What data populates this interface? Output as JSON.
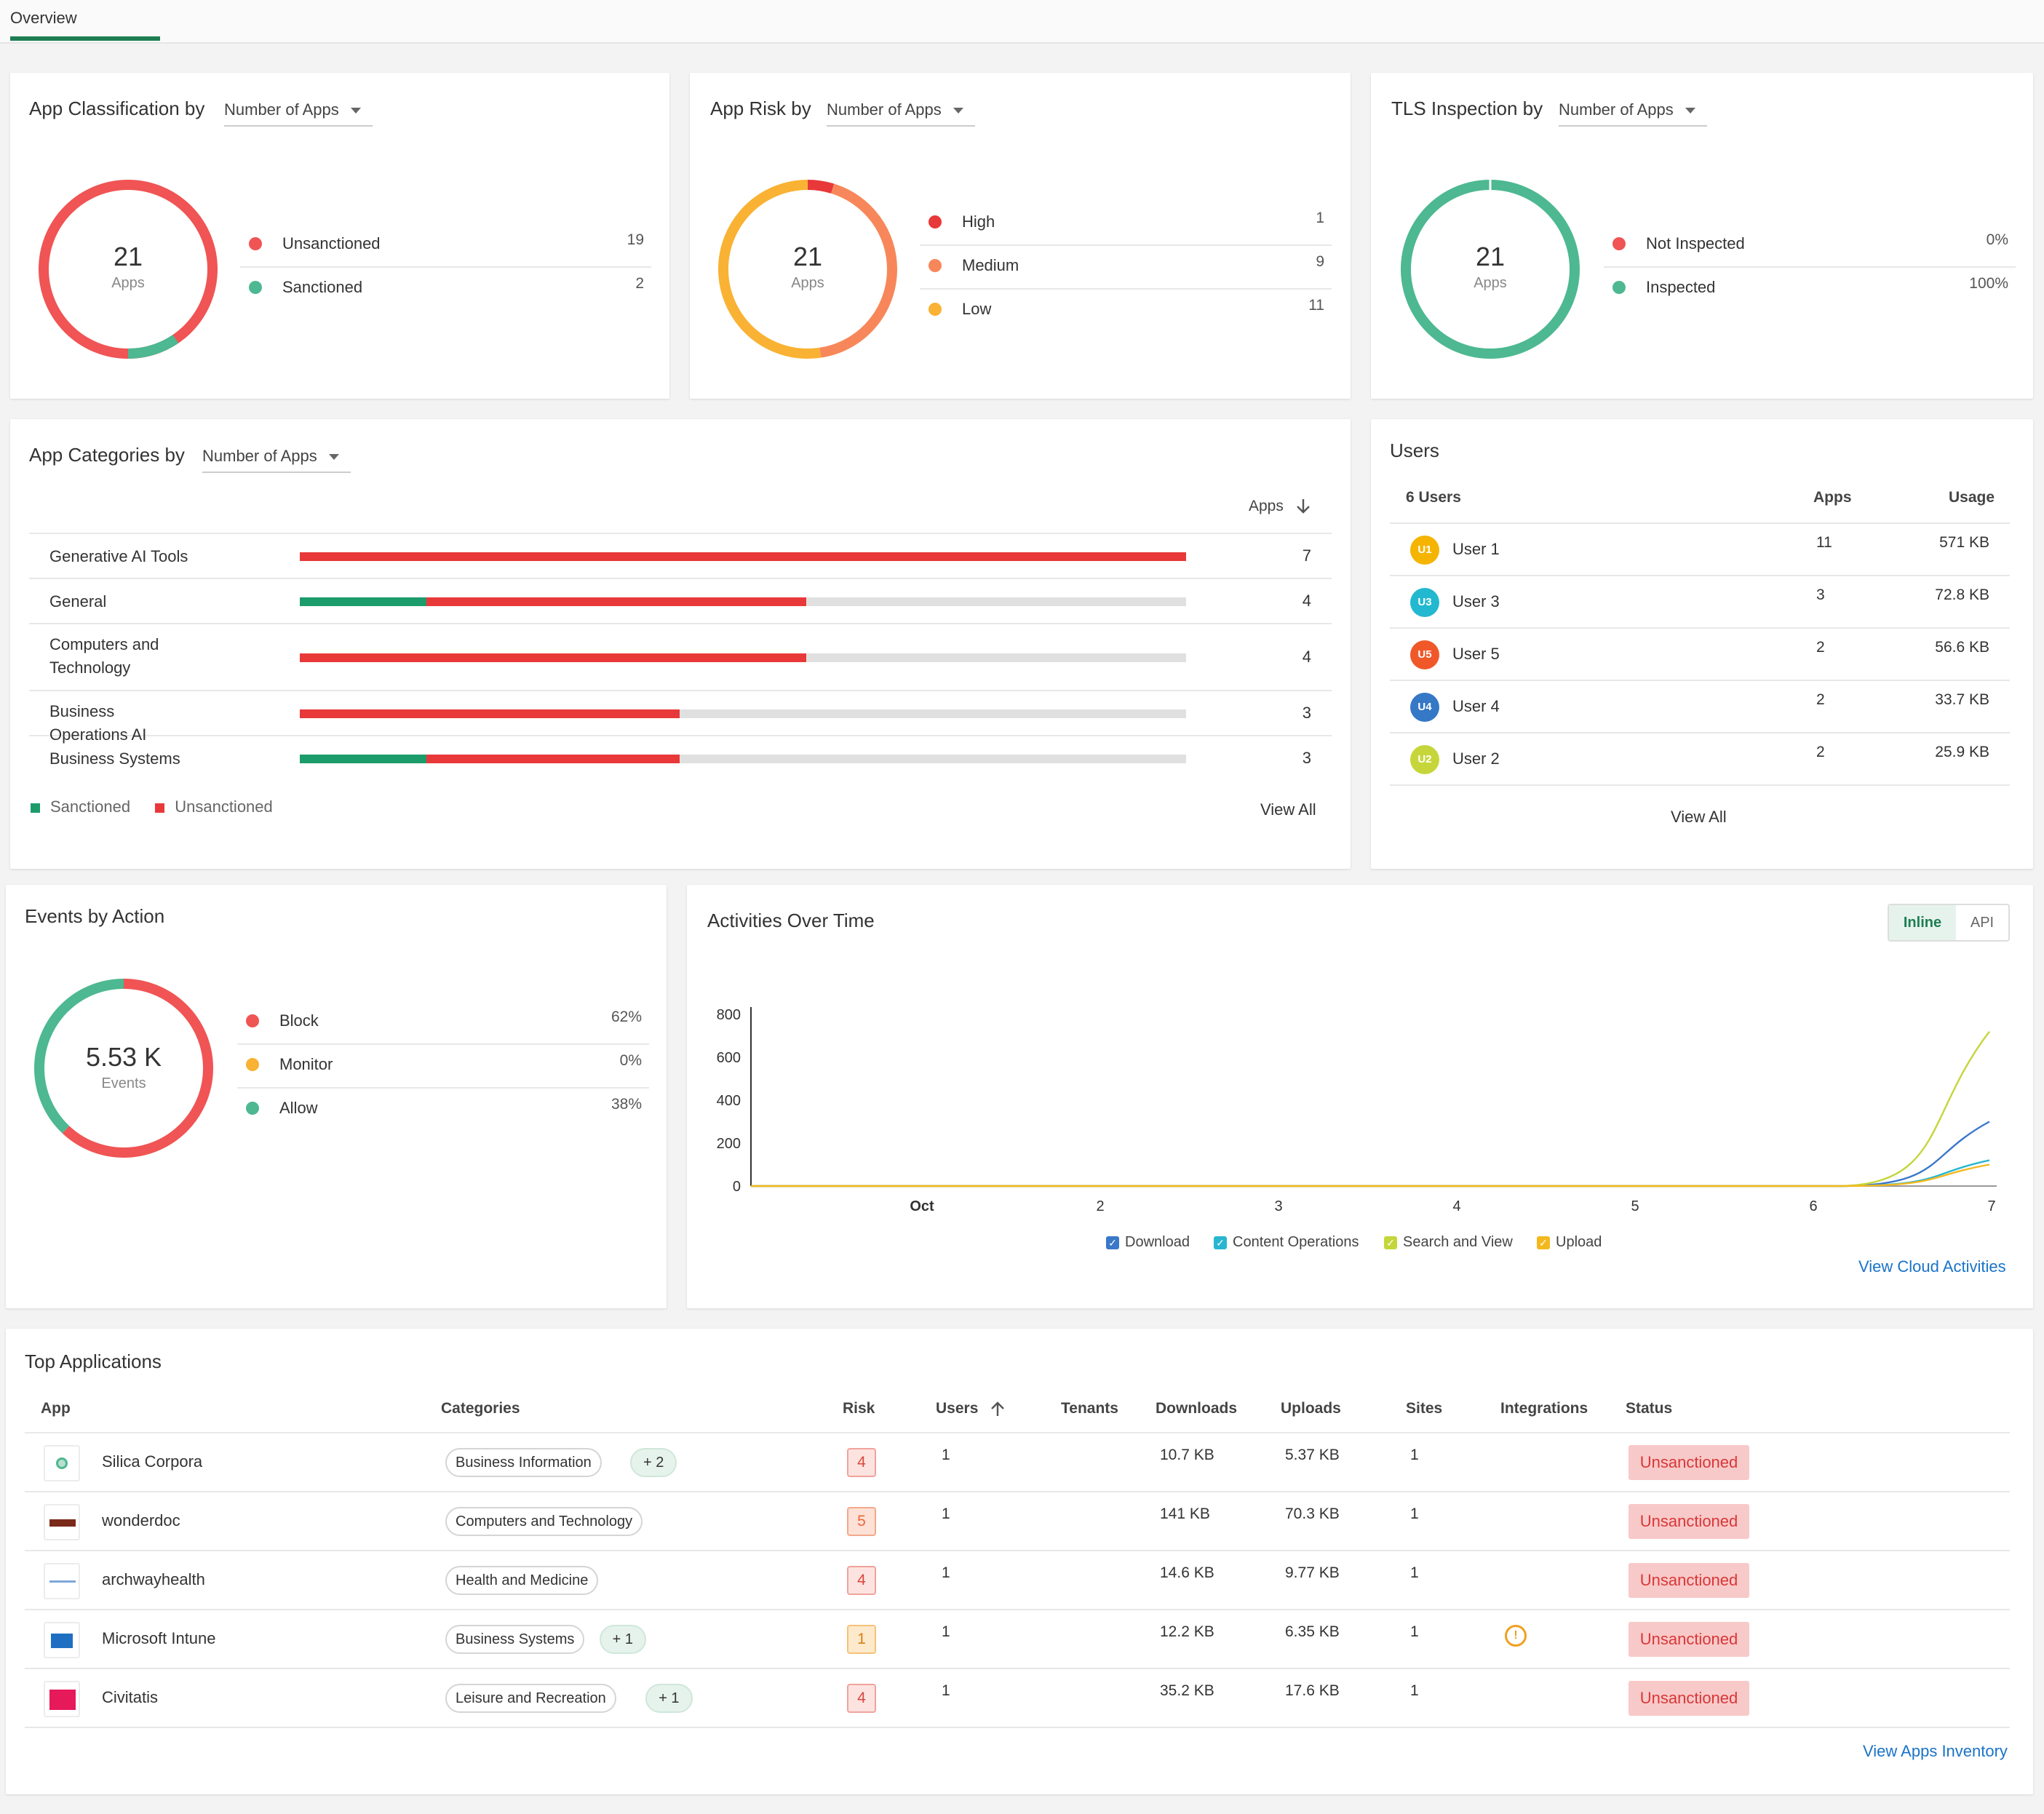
{
  "tabs": {
    "overview": "Overview"
  },
  "measure_label": "Number of Apps",
  "classification": {
    "title": "App Classification by",
    "total": "21",
    "unit": "Apps",
    "items": [
      {
        "label": "Unsanctioned",
        "value": "19",
        "color": "#f05454"
      },
      {
        "label": "Sanctioned",
        "value": "2",
        "color": "#4db891"
      }
    ]
  },
  "risk": {
    "title": "App Risk by",
    "total": "21",
    "unit": "Apps",
    "items": [
      {
        "label": "High",
        "value": "1",
        "color": "#e8383a"
      },
      {
        "label": "Medium",
        "value": "9",
        "color": "#f7875a"
      },
      {
        "label": "Low",
        "value": "11",
        "color": "#f9b233"
      }
    ]
  },
  "tls": {
    "title": "TLS Inspection by",
    "total": "21",
    "unit": "Apps",
    "items": [
      {
        "label": "Not Inspected",
        "value": "0%",
        "color": "#f05454"
      },
      {
        "label": "Inspected",
        "value": "100%",
        "color": "#4db891"
      }
    ]
  },
  "categories": {
    "title": "App Categories by",
    "col_header": "Apps",
    "rows": [
      {
        "name": "Generative AI Tools",
        "sanctioned": 0,
        "unsanctioned": 7,
        "value": "7"
      },
      {
        "name": "General",
        "sanctioned": 1,
        "unsanctioned": 3,
        "value": "4"
      },
      {
        "name": "Computers and Technology",
        "sanctioned": 0,
        "unsanctioned": 4,
        "value": "4"
      },
      {
        "name": "Business Operations AI",
        "sanctioned": 0,
        "unsanctioned": 3,
        "value": "3"
      },
      {
        "name": "Business Systems",
        "sanctioned": 1,
        "unsanctioned": 2,
        "value": "3"
      }
    ],
    "scale_max": 7,
    "legend": {
      "sanctioned": "Sanctioned",
      "unsanctioned": "Unsanctioned"
    },
    "view_all": "View All"
  },
  "users": {
    "title": "Users",
    "count_header": "6 Users",
    "apps_header": "Apps",
    "usage_header": "Usage",
    "rows": [
      {
        "initials": "U1",
        "name": "User 1",
        "apps": "11",
        "usage": "571 KB",
        "color": "#f5b400"
      },
      {
        "initials": "U3",
        "name": "User 3",
        "apps": "3",
        "usage": "72.8 KB",
        "color": "#22b8cf"
      },
      {
        "initials": "U5",
        "name": "User 5",
        "apps": "2",
        "usage": "56.6 KB",
        "color": "#f0582a"
      },
      {
        "initials": "U4",
        "name": "User 4",
        "apps": "2",
        "usage": "33.7 KB",
        "color": "#3578c6"
      },
      {
        "initials": "U2",
        "name": "User 2",
        "apps": "2",
        "usage": "25.9 KB",
        "color": "#c6d63a"
      }
    ],
    "view_all": "View All"
  },
  "events": {
    "title": "Events by Action",
    "total": "5.53 K",
    "unit": "Events",
    "items": [
      {
        "label": "Block",
        "value": "62%",
        "color": "#f05454"
      },
      {
        "label": "Monitor",
        "value": "0%",
        "color": "#f9b233"
      },
      {
        "label": "Allow",
        "value": "38%",
        "color": "#4db891"
      }
    ]
  },
  "activities": {
    "title": "Activities Over Time",
    "toggle": {
      "inline": "Inline",
      "api": "API"
    },
    "view_link": "View Cloud Activities",
    "chart_data": {
      "type": "line",
      "x": [
        "Oct",
        "2",
        "3",
        "4",
        "5",
        "6",
        "7"
      ],
      "y_ticks": [
        "0",
        "200",
        "400",
        "600",
        "800"
      ],
      "ylim": [
        0,
        800
      ],
      "series": [
        {
          "name": "Download",
          "color": "#3a78c9",
          "values": [
            0,
            0,
            0,
            0,
            0,
            0,
            300
          ]
        },
        {
          "name": "Content Operations",
          "color": "#29b6d1",
          "values": [
            0,
            0,
            0,
            0,
            0,
            0,
            120
          ]
        },
        {
          "name": "Search and View",
          "color": "#c4d63a",
          "values": [
            0,
            0,
            0,
            0,
            0,
            0,
            720
          ]
        },
        {
          "name": "Upload",
          "color": "#f4b81f",
          "values": [
            0,
            0,
            0,
            0,
            0,
            0,
            100
          ]
        }
      ]
    }
  },
  "top_apps": {
    "title": "Top Applications",
    "headers": {
      "app": "App",
      "categories": "Categories",
      "risk": "Risk",
      "users": "Users",
      "tenants": "Tenants",
      "downloads": "Downloads",
      "uploads": "Uploads",
      "sites": "Sites",
      "integrations": "Integrations",
      "status": "Status"
    },
    "rows": [
      {
        "name": "Silica Corpora",
        "category": "Business Information",
        "more": "+ 2",
        "risk": "4",
        "users": "1",
        "downloads": "10.7 KB",
        "uploads": "5.37 KB",
        "sites": "1",
        "status": "Unsanctioned"
      },
      {
        "name": "wonderdoc",
        "category": "Computers and Technology",
        "more": "",
        "risk": "5",
        "users": "1",
        "downloads": "141 KB",
        "uploads": "70.3 KB",
        "sites": "1",
        "status": "Unsanctioned"
      },
      {
        "name": "archwayhealth",
        "category": "Health and Medicine",
        "more": "",
        "risk": "4",
        "users": "1",
        "downloads": "14.6 KB",
        "uploads": "9.77 KB",
        "sites": "1",
        "status": "Unsanctioned"
      },
      {
        "name": "Microsoft Intune",
        "category": "Business Systems",
        "more": "+ 1",
        "risk": "1",
        "users": "1",
        "downloads": "12.2 KB",
        "uploads": "6.35 KB",
        "sites": "1",
        "status": "Unsanctioned"
      },
      {
        "name": "Civitatis",
        "category": "Leisure and Recreation",
        "more": "+ 1",
        "risk": "4",
        "users": "1",
        "downloads": "35.2 KB",
        "uploads": "17.6 KB",
        "sites": "1",
        "status": "Unsanctioned"
      }
    ],
    "view_link": "View Apps Inventory"
  }
}
